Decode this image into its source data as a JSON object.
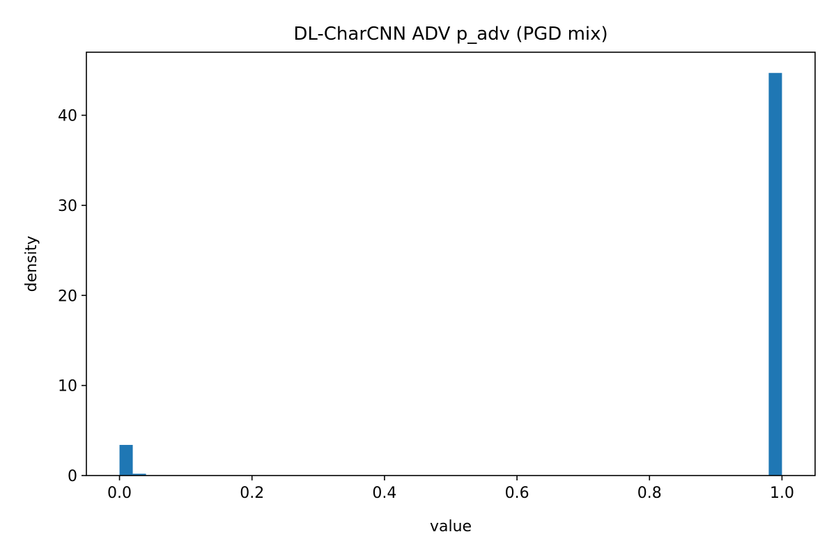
{
  "chart_data": {
    "type": "bar",
    "title": "DL-CharCNN ADV p_adv (PGD mix)",
    "xlabel": "value",
    "ylabel": "density",
    "xlim": [
      -0.05,
      1.05
    ],
    "ylim": [
      0,
      47
    ],
    "xticks": [
      0.0,
      0.2,
      0.4,
      0.6,
      0.8,
      1.0
    ],
    "xtick_labels": [
      "0.0",
      "0.2",
      "0.4",
      "0.6",
      "0.8",
      "1.0"
    ],
    "yticks": [
      0,
      10,
      20,
      30,
      40
    ],
    "ytick_labels": [
      "0",
      "10",
      "20",
      "30",
      "40"
    ],
    "grid": false,
    "bar_color": "#1f77b4",
    "bins": [
      {
        "x0": 0.0,
        "x1": 0.02,
        "value": 3.4
      },
      {
        "x0": 0.02,
        "x1": 0.04,
        "value": 0.2
      },
      {
        "x0": 0.98,
        "x1": 1.0,
        "value": 44.7
      }
    ]
  }
}
